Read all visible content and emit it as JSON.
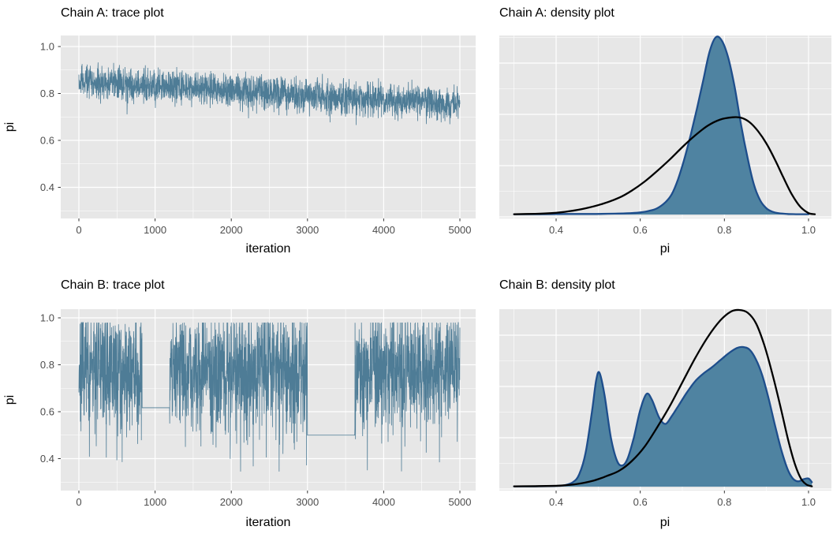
{
  "style": {
    "background": "#FFFFFF",
    "panel_background": "#E7E7E7",
    "grid_color": "#FFFFFF",
    "axis_tick_color": "#333333",
    "tick_label_color": "#4D4D4D",
    "text_color": "#000000",
    "trace_color": "#4E7C96",
    "density_fill": "#4F83A1",
    "density_stroke": "#1E4E8C",
    "comparison_curve_color": "#000000"
  },
  "chart_data": [
    {
      "id": "chain-a-trace",
      "type": "line",
      "title": "Chain A: trace plot",
      "xlabel": "iteration",
      "ylabel": "pi",
      "xlim": [
        -250,
        5250
      ],
      "ylim": [
        0.265,
        1.045
      ],
      "x_ticks": [
        0,
        1000,
        2000,
        3000,
        4000,
        5000
      ],
      "x_tick_labels": [
        "0",
        "1000",
        "2000",
        "3000",
        "4000",
        "5000"
      ],
      "x_minor_ticks": [
        500,
        1500,
        2500,
        3500,
        4500
      ],
      "y_ticks": [
        0.4,
        0.6,
        0.8,
        1.0
      ],
      "y_tick_labels": [
        "0.4",
        "0.6",
        "0.8",
        "1.0"
      ],
      "y_minor_ticks": [
        0.3,
        0.5,
        0.7,
        0.9
      ],
      "grid": "major+minor",
      "legend": false,
      "series": [
        {
          "name": "pi samples (chain A)",
          "representation": "generated-mcmc-trace",
          "n_iterations": 5000,
          "sample_step": 2,
          "seed": 42,
          "mean_start": 0.853,
          "mean_end": 0.757,
          "noise": 0.068,
          "dip_prob": 0.05,
          "dip_max": 0.08,
          "clamp_min": 0.58,
          "clamp_max": 0.985,
          "flat_segments": [],
          "summary": "dense noisy band drifting from ~0.85 at iteration 0 down to ~0.76 at iteration 5000; spikes span ~0.63 to ~0.97"
        }
      ]
    },
    {
      "id": "chain-a-density",
      "type": "area",
      "title": "Chain A: density plot",
      "xlabel": "pi",
      "ylabel": "",
      "xlim": [
        0.265,
        1.06
      ],
      "x_ticks": [
        0.4,
        0.6,
        0.8,
        1.0
      ],
      "x_tick_labels": [
        "0.4",
        "0.6",
        "0.8",
        "1.0"
      ],
      "x_minor_ticks": [
        0.3,
        0.5,
        0.7,
        0.9
      ],
      "y_axis": "density (no tick labels shown)",
      "y_unit": "fraction of panel height",
      "grid": "major+minor",
      "legend": false,
      "series": [
        {
          "name": "chain A sample density",
          "style": "filled",
          "peak_x": 0.78,
          "points": [
            [
              0.3,
              0.002
            ],
            [
              0.36,
              0.002
            ],
            [
              0.42,
              0.003
            ],
            [
              0.48,
              0.003
            ],
            [
              0.54,
              0.005
            ],
            [
              0.58,
              0.008
            ],
            [
              0.6,
              0.012
            ],
            [
              0.62,
              0.02
            ],
            [
              0.64,
              0.035
            ],
            [
              0.66,
              0.07
            ],
            [
              0.675,
              0.115
            ],
            [
              0.69,
              0.2
            ],
            [
              0.705,
              0.315
            ],
            [
              0.72,
              0.45
            ],
            [
              0.735,
              0.6
            ],
            [
              0.75,
              0.76
            ],
            [
              0.765,
              0.92
            ],
            [
              0.78,
              1.0
            ],
            [
              0.795,
              0.975
            ],
            [
              0.81,
              0.875
            ],
            [
              0.825,
              0.71
            ],
            [
              0.84,
              0.5
            ],
            [
              0.855,
              0.32
            ],
            [
              0.87,
              0.17
            ],
            [
              0.885,
              0.08
            ],
            [
              0.9,
              0.035
            ],
            [
              0.915,
              0.015
            ],
            [
              0.93,
              0.007
            ],
            [
              0.95,
              0.003
            ],
            [
              0.97,
              0.002
            ],
            [
              1.0,
              0.002
            ]
          ]
        },
        {
          "name": "reference posterior curve",
          "style": "line",
          "peak_x": 0.83,
          "points": [
            [
              0.3,
              0.002
            ],
            [
              0.35,
              0.004
            ],
            [
              0.39,
              0.008
            ],
            [
              0.43,
              0.018
            ],
            [
              0.47,
              0.035
            ],
            [
              0.51,
              0.06
            ],
            [
              0.55,
              0.095
            ],
            [
              0.58,
              0.135
            ],
            [
              0.61,
              0.185
            ],
            [
              0.64,
              0.245
            ],
            [
              0.67,
              0.31
            ],
            [
              0.7,
              0.38
            ],
            [
              0.73,
              0.445
            ],
            [
              0.76,
              0.5
            ],
            [
              0.79,
              0.535
            ],
            [
              0.82,
              0.548
            ],
            [
              0.84,
              0.545
            ],
            [
              0.86,
              0.52
            ],
            [
              0.88,
              0.47
            ],
            [
              0.9,
              0.4
            ],
            [
              0.92,
              0.31
            ],
            [
              0.94,
              0.21
            ],
            [
              0.96,
              0.115
            ],
            [
              0.98,
              0.045
            ],
            [
              1.0,
              0.008
            ],
            [
              1.015,
              0.002
            ]
          ]
        }
      ]
    },
    {
      "id": "chain-b-trace",
      "type": "line",
      "title": "Chain B: trace plot",
      "xlabel": "iteration",
      "ylabel": "pi",
      "xlim": [
        -250,
        5250
      ],
      "ylim": [
        0.265,
        1.045
      ],
      "x_ticks": [
        0,
        1000,
        2000,
        3000,
        4000,
        5000
      ],
      "x_tick_labels": [
        "0",
        "1000",
        "2000",
        "3000",
        "4000",
        "5000"
      ],
      "x_minor_ticks": [
        500,
        1500,
        2500,
        3500,
        4500
      ],
      "y_ticks": [
        0.4,
        0.6,
        0.8,
        1.0
      ],
      "y_tick_labels": [
        "0.4",
        "0.6",
        "0.8",
        "1.0"
      ],
      "y_minor_ticks": [
        0.3,
        0.5,
        0.7,
        0.9
      ],
      "grid": "major+minor",
      "legend": false,
      "series": [
        {
          "name": "pi samples (chain B)",
          "representation": "generated-mcmc-trace",
          "n_iterations": 5000,
          "sample_step": 2,
          "seed": 7,
          "mean_start": 0.79,
          "mean_end": 0.79,
          "noise": 0.24,
          "dip_prob": 0.12,
          "dip_max": 0.28,
          "clamp_min": 0.345,
          "clamp_max": 0.98,
          "flat_segments": [
            {
              "from": 830,
              "to": 1190,
              "value": 0.617
            },
            {
              "from": 3000,
              "to": 3620,
              "value": 0.5
            }
          ],
          "summary": "very noisy band ~0.55-0.98 centered near 0.8 with downspikes to ~0.35; chain sticks flat at pi=0.62 for iterations ~830-1190 and at pi=0.50 for iterations ~3000-3620"
        }
      ]
    },
    {
      "id": "chain-b-density",
      "type": "area",
      "title": "Chain B: density plot",
      "xlabel": "pi",
      "ylabel": "",
      "xlim": [
        0.265,
        1.06
      ],
      "x_ticks": [
        0.4,
        0.6,
        0.8,
        1.0
      ],
      "x_tick_labels": [
        "0.4",
        "0.6",
        "0.8",
        "1.0"
      ],
      "x_minor_ticks": [
        0.3,
        0.5,
        0.7,
        0.9
      ],
      "y_axis": "density (no tick labels shown)",
      "y_unit": "fraction of panel height",
      "grid": "major+minor",
      "legend": false,
      "series": [
        {
          "name": "chain B sample density (multimodal)",
          "style": "filled",
          "peak_x": 0.84,
          "points": [
            [
              0.3,
              0.002
            ],
            [
              0.35,
              0.002
            ],
            [
              0.4,
              0.004
            ],
            [
              0.42,
              0.008
            ],
            [
              0.44,
              0.025
            ],
            [
              0.455,
              0.07
            ],
            [
              0.47,
              0.19
            ],
            [
              0.485,
              0.42
            ],
            [
              0.495,
              0.6
            ],
            [
              0.503,
              0.645
            ],
            [
              0.515,
              0.52
            ],
            [
              0.53,
              0.28
            ],
            [
              0.545,
              0.145
            ],
            [
              0.558,
              0.12
            ],
            [
              0.57,
              0.16
            ],
            [
              0.585,
              0.28
            ],
            [
              0.6,
              0.435
            ],
            [
              0.615,
              0.525
            ],
            [
              0.628,
              0.49
            ],
            [
              0.645,
              0.39
            ],
            [
              0.66,
              0.355
            ],
            [
              0.675,
              0.4
            ],
            [
              0.69,
              0.455
            ],
            [
              0.71,
              0.53
            ],
            [
              0.73,
              0.595
            ],
            [
              0.75,
              0.64
            ],
            [
              0.77,
              0.675
            ],
            [
              0.79,
              0.715
            ],
            [
              0.81,
              0.755
            ],
            [
              0.83,
              0.785
            ],
            [
              0.845,
              0.79
            ],
            [
              0.86,
              0.775
            ],
            [
              0.875,
              0.72
            ],
            [
              0.89,
              0.63
            ],
            [
              0.905,
              0.5
            ],
            [
              0.92,
              0.35
            ],
            [
              0.935,
              0.21
            ],
            [
              0.95,
              0.1
            ],
            [
              0.962,
              0.048
            ],
            [
              0.975,
              0.03
            ],
            [
              0.988,
              0.042
            ],
            [
              1.0,
              0.046
            ],
            [
              1.008,
              0.025
            ]
          ]
        },
        {
          "name": "reference posterior curve",
          "style": "line",
          "peak_x": 0.835,
          "points": [
            [
              0.3,
              0.002
            ],
            [
              0.36,
              0.003
            ],
            [
              0.41,
              0.006
            ],
            [
              0.45,
              0.015
            ],
            [
              0.49,
              0.035
            ],
            [
              0.52,
              0.06
            ],
            [
              0.55,
              0.09
            ],
            [
              0.58,
              0.145
            ],
            [
              0.61,
              0.225
            ],
            [
              0.64,
              0.335
            ],
            [
              0.67,
              0.455
            ],
            [
              0.7,
              0.59
            ],
            [
              0.73,
              0.725
            ],
            [
              0.76,
              0.845
            ],
            [
              0.79,
              0.94
            ],
            [
              0.815,
              0.99
            ],
            [
              0.835,
              1.0
            ],
            [
              0.855,
              0.985
            ],
            [
              0.875,
              0.925
            ],
            [
              0.895,
              0.8
            ],
            [
              0.915,
              0.63
            ],
            [
              0.935,
              0.435
            ],
            [
              0.952,
              0.26
            ],
            [
              0.968,
              0.125
            ],
            [
              0.982,
              0.045
            ],
            [
              0.995,
              0.012
            ],
            [
              1.008,
              0.002
            ]
          ]
        }
      ]
    }
  ]
}
